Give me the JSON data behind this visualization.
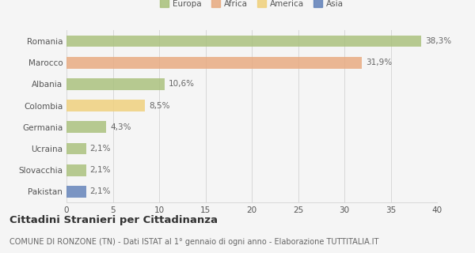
{
  "categories": [
    "Romania",
    "Marocco",
    "Albania",
    "Colombia",
    "Germania",
    "Ucraina",
    "Slovacchia",
    "Pakistan"
  ],
  "values": [
    38.3,
    31.9,
    10.6,
    8.5,
    4.3,
    2.1,
    2.1,
    2.1
  ],
  "labels": [
    "38,3%",
    "31,9%",
    "10,6%",
    "8,5%",
    "4,3%",
    "2,1%",
    "2,1%",
    "2,1%"
  ],
  "colors": [
    "#a8c07a",
    "#e8a97e",
    "#a8c07a",
    "#f0d07a",
    "#a8c07a",
    "#a8c07a",
    "#a8c07a",
    "#6080b8"
  ],
  "legend_entries": [
    {
      "label": "Europa",
      "color": "#a8c07a"
    },
    {
      "label": "Africa",
      "color": "#e8a97e"
    },
    {
      "label": "America",
      "color": "#f0d07a"
    },
    {
      "label": "Asia",
      "color": "#6080b8"
    }
  ],
  "title": "Cittadini Stranieri per Cittadinanza",
  "subtitle": "COMUNE DI RONZONE (TN) - Dati ISTAT al 1° gennaio di ogni anno - Elaborazione TUTTITALIA.IT",
  "xlim": [
    0,
    40
  ],
  "xticks": [
    0,
    5,
    10,
    15,
    20,
    25,
    30,
    35,
    40
  ],
  "background_color": "#f5f5f5",
  "grid_color": "#d8d8d8",
  "bar_height": 0.55,
  "label_fontsize": 7.5,
  "tick_fontsize": 7.5,
  "title_fontsize": 9.5,
  "subtitle_fontsize": 7.0
}
